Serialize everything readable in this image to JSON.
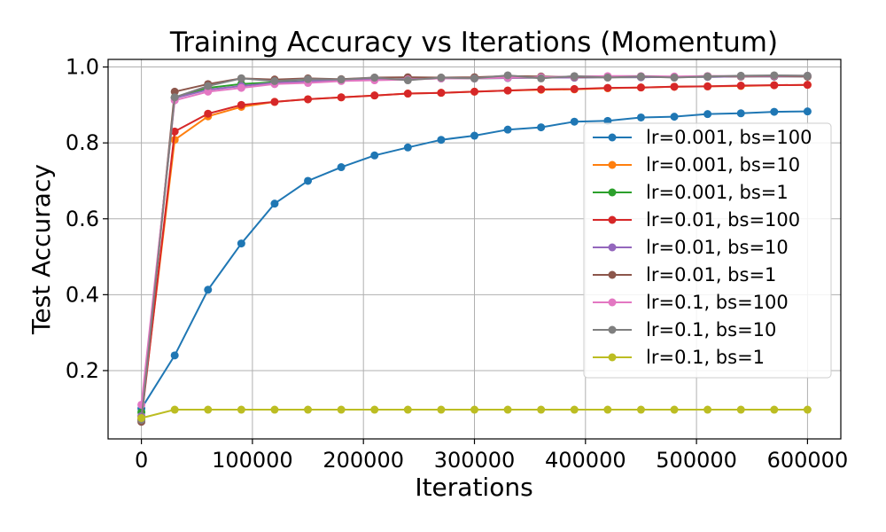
{
  "chart_data": {
    "type": "line",
    "title": "Training Accuracy vs Iterations (Momentum)",
    "xlabel": "Iterations",
    "ylabel": "Test Accuracy",
    "xlim": [
      -30000,
      630000
    ],
    "ylim": [
      0.02,
      1.02
    ],
    "xticks": [
      0,
      100000,
      200000,
      300000,
      400000,
      500000,
      600000
    ],
    "xtick_labels": [
      "0",
      "100000",
      "200000",
      "300000",
      "400000",
      "500000",
      "600000"
    ],
    "yticks": [
      0.2,
      0.4,
      0.6,
      0.8,
      1.0
    ],
    "ytick_labels": [
      "0.2",
      "0.4",
      "0.6",
      "0.8",
      "1.0"
    ],
    "grid": true,
    "legend_position": "right",
    "x": [
      0,
      30000,
      60000,
      90000,
      120000,
      150000,
      180000,
      210000,
      240000,
      270000,
      300000,
      330000,
      360000,
      390000,
      420000,
      450000,
      480000,
      510000,
      540000,
      570000,
      600000
    ],
    "series": [
      {
        "name": "lr=0.001, bs=100",
        "color": "#1f77b4",
        "values": [
          0.1,
          0.24,
          0.413,
          0.535,
          0.64,
          0.7,
          0.736,
          0.767,
          0.788,
          0.808,
          0.819,
          0.835,
          0.841,
          0.856,
          0.858,
          0.867,
          0.869,
          0.876,
          0.878,
          0.882,
          0.883
        ]
      },
      {
        "name": "lr=0.001, bs=10",
        "color": "#ff7f0e",
        "values": [
          0.08,
          0.808,
          0.87,
          0.895,
          0.908,
          0.915,
          0.92,
          0.925,
          0.93,
          0.932,
          0.935,
          0.938,
          0.94,
          0.941,
          0.944,
          0.946,
          0.948,
          0.949,
          0.95,
          0.952,
          0.953
        ]
      },
      {
        "name": "lr=0.001, bs=1",
        "color": "#2ca02c",
        "values": [
          0.09,
          0.92,
          0.945,
          0.955,
          0.96,
          0.963,
          0.965,
          0.967,
          0.968,
          0.97,
          0.97,
          0.971,
          0.972,
          0.972,
          0.973,
          0.973,
          0.974,
          0.974,
          0.975,
          0.975,
          0.975
        ]
      },
      {
        "name": "lr=0.01, bs=100",
        "color": "#d62728",
        "values": [
          0.07,
          0.83,
          0.877,
          0.9,
          0.908,
          0.915,
          0.92,
          0.925,
          0.93,
          0.932,
          0.935,
          0.938,
          0.941,
          0.942,
          0.945,
          0.946,
          0.948,
          0.949,
          0.951,
          0.952,
          0.953
        ]
      },
      {
        "name": "lr=0.01, bs=10",
        "color": "#9467bd",
        "values": [
          0.08,
          0.918,
          0.94,
          0.95,
          0.958,
          0.962,
          0.965,
          0.967,
          0.968,
          0.97,
          0.97,
          0.971,
          0.972,
          0.972,
          0.973,
          0.973,
          0.974,
          0.974,
          0.975,
          0.975,
          0.975
        ]
      },
      {
        "name": "lr=0.01, bs=1",
        "color": "#8c564b",
        "values": [
          0.065,
          0.935,
          0.955,
          0.97,
          0.967,
          0.97,
          0.968,
          0.972,
          0.973,
          0.972,
          0.973,
          0.976,
          0.975,
          0.974,
          0.974,
          0.975,
          0.974,
          0.976,
          0.975,
          0.976,
          0.975
        ]
      },
      {
        "name": "lr=0.1, bs=100",
        "color": "#e377c2",
        "values": [
          0.11,
          0.912,
          0.935,
          0.945,
          0.955,
          0.958,
          0.963,
          0.965,
          0.967,
          0.97,
          0.97,
          0.972,
          0.973,
          0.975,
          0.976,
          0.976,
          0.975,
          0.976,
          0.976,
          0.977,
          0.977
        ]
      },
      {
        "name": "lr=0.1, bs=10",
        "color": "#7f7f7f",
        "values": [
          0.07,
          0.92,
          0.95,
          0.97,
          0.963,
          0.968,
          0.967,
          0.972,
          0.965,
          0.972,
          0.97,
          0.978,
          0.97,
          0.976,
          0.972,
          0.975,
          0.972,
          0.975,
          0.977,
          0.978,
          0.977
        ]
      },
      {
        "name": "lr=0.1, bs=1",
        "color": "#bcbd22",
        "values": [
          0.075,
          0.097,
          0.097,
          0.097,
          0.097,
          0.097,
          0.097,
          0.097,
          0.097,
          0.097,
          0.097,
          0.097,
          0.097,
          0.097,
          0.097,
          0.097,
          0.097,
          0.097,
          0.097,
          0.097,
          0.097
        ]
      }
    ]
  }
}
